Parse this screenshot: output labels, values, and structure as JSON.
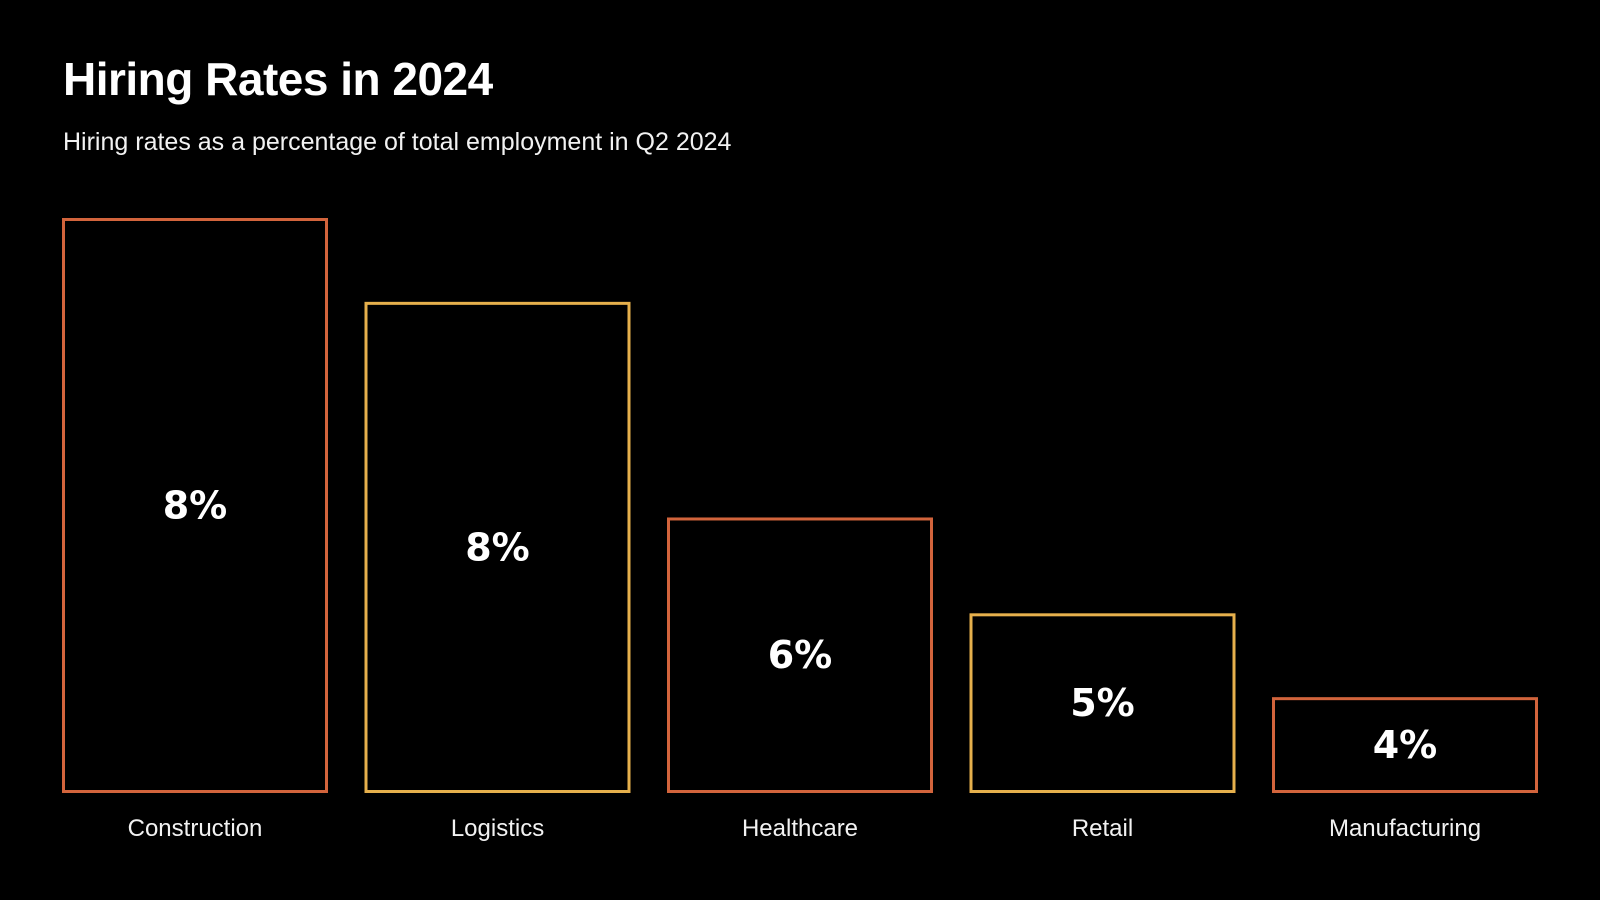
{
  "chart_data": {
    "type": "bar",
    "title": "Hiring Rates in 2024",
    "subtitle": "Hiring rates as a percentage of total employment in Q2 2024",
    "categories": [
      "Construction",
      "Logistics",
      "Healthcare",
      "Retail",
      "Manufacturing"
    ],
    "values": [
      8.3,
      7.6,
      5.8,
      5.0,
      4.3
    ],
    "data_labels": [
      "8%",
      "8%",
      "6%",
      "5%",
      "4%"
    ],
    "bar_colors": [
      "#d2643c",
      "#e6b04c",
      "#d2643c",
      "#e6b04c",
      "#d2643c"
    ],
    "bar_style": "outline",
    "xlabel": "",
    "ylabel": "",
    "ylim": [
      3.5,
      8.3
    ],
    "grid": false,
    "background": "#000000"
  }
}
